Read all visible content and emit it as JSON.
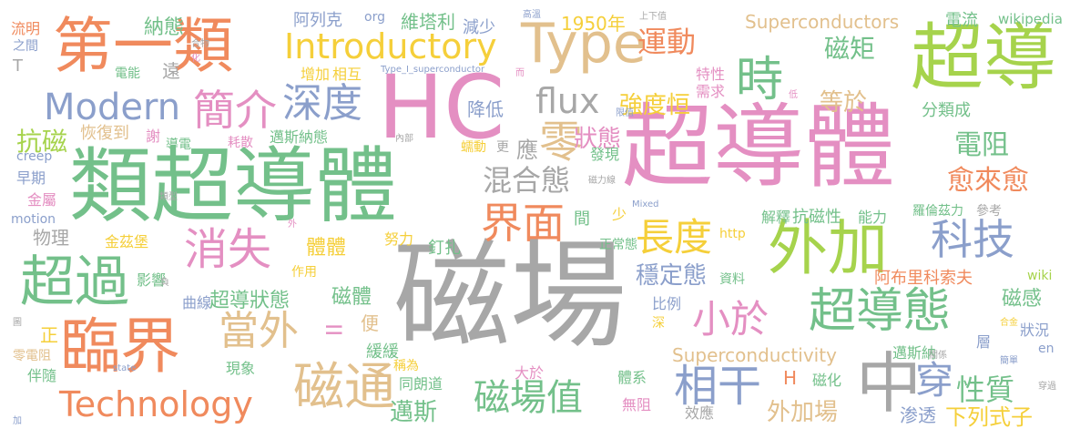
{
  "colors": {
    "gray": "#a7a7a7",
    "pink": "#e48fc2",
    "green": "#73c08a",
    "orange": "#f08a5d",
    "tan": "#e2c08d",
    "blue": "#8b9fcb",
    "lime": "#a6d34c",
    "yellow": "#f5cf3a"
  },
  "words": [
    {
      "text": "磁場",
      "color": "gray"
    },
    {
      "text": "超導體",
      "color": "pink"
    },
    {
      "text": "類超導體",
      "color": "green"
    },
    {
      "text": "HC",
      "color": "pink"
    },
    {
      "text": "第一類",
      "color": "orange"
    },
    {
      "text": "超導",
      "color": "lime"
    },
    {
      "text": "Type",
      "color": "tan"
    },
    {
      "text": "臨界",
      "color": "orange"
    },
    {
      "text": "外加",
      "color": "lime"
    },
    {
      "text": "中",
      "color": "gray"
    },
    {
      "text": "Introductory",
      "color": "yellow"
    },
    {
      "text": "磁通",
      "color": "tan"
    },
    {
      "text": "超過",
      "color": "green"
    },
    {
      "text": "消失",
      "color": "pink"
    },
    {
      "text": "深度",
      "color": "blue"
    },
    {
      "text": "Modern",
      "color": "blue"
    },
    {
      "text": "Technology",
      "color": "orange"
    },
    {
      "text": "超導態",
      "color": "green"
    },
    {
      "text": "相干",
      "color": "blue"
    },
    {
      "text": "磁場值",
      "color": "green"
    },
    {
      "text": "簡介",
      "color": "pink"
    },
    {
      "text": "時",
      "color": "green"
    },
    {
      "text": "當外",
      "color": "tan"
    },
    {
      "text": "科技",
      "color": "blue"
    },
    {
      "text": "界面",
      "color": "orange"
    },
    {
      "text": "小於",
      "color": "pink"
    },
    {
      "text": "長度",
      "color": "yellow"
    },
    {
      "text": "flux",
      "color": "gray"
    },
    {
      "text": "零",
      "color": "tan"
    },
    {
      "text": "混合態",
      "color": "gray"
    },
    {
      "text": "運動",
      "color": "orange"
    },
    {
      "text": "穿",
      "color": "blue"
    },
    {
      "text": "性質",
      "color": "green"
    },
    {
      "text": "電阻",
      "color": "green"
    },
    {
      "text": "愈來愈",
      "color": "orange"
    },
    {
      "text": "磁矩",
      "color": "green"
    },
    {
      "text": "強度恒",
      "color": "yellow"
    },
    {
      "text": "狀態",
      "color": "pink"
    },
    {
      "text": "等於",
      "color": "tan"
    },
    {
      "text": "外加場",
      "color": "tan"
    },
    {
      "text": "下列式子",
      "color": "yellow"
    },
    {
      "text": "穩定態",
      "color": "blue"
    },
    {
      "text": "Superconductors",
      "color": "tan"
    },
    {
      "text": "Superconductivity",
      "color": "tan"
    },
    {
      "text": "阿布里科索夫",
      "color": "orange"
    },
    {
      "text": "磁體",
      "color": "green"
    },
    {
      "text": "超導狀態",
      "color": "green"
    },
    {
      "text": "體體",
      "color": "yellow"
    },
    {
      "text": "邁斯",
      "color": "green"
    },
    {
      "text": "抗磁",
      "color": "lime"
    },
    {
      "text": "1950年",
      "color": "yellow"
    },
    {
      "text": "納態",
      "color": "green"
    },
    {
      "text": "維塔利",
      "color": "green"
    },
    {
      "text": "阿列克",
      "color": "blue"
    },
    {
      "text": "減少",
      "color": "blue"
    },
    {
      "text": "電流",
      "color": "green"
    },
    {
      "text": "wikipedia",
      "color": "green"
    },
    {
      "text": "應",
      "color": "gray"
    },
    {
      "text": "降低",
      "color": "blue"
    },
    {
      "text": "磁感",
      "color": "green"
    },
    {
      "text": "磁化",
      "color": "green"
    },
    {
      "text": "渗透",
      "color": "blue"
    },
    {
      "text": "解釋",
      "color": "green"
    },
    {
      "text": "能力",
      "color": "green"
    },
    {
      "text": "抗磁性",
      "color": "green"
    },
    {
      "text": "羅倫茲力",
      "color": "green"
    },
    {
      "text": "參考",
      "color": "gray"
    },
    {
      "text": "遠",
      "color": "gray"
    },
    {
      "text": "增加",
      "color": "yellow"
    },
    {
      "text": "相互",
      "color": "yellow"
    },
    {
      "text": "物理",
      "color": "gray"
    },
    {
      "text": "金茲堡",
      "color": "yellow"
    },
    {
      "text": "釘扎",
      "color": "green"
    },
    {
      "text": "努力",
      "color": "yellow"
    },
    {
      "text": "正常態",
      "color": "green"
    },
    {
      "text": "曲線",
      "color": "blue"
    },
    {
      "text": "影響",
      "color": "green"
    },
    {
      "text": "作用",
      "color": "yellow"
    },
    {
      "text": "緩緩",
      "color": "green"
    },
    {
      "text": "現象",
      "color": "green"
    },
    {
      "text": "同朗道",
      "color": "green"
    },
    {
      "text": "大於",
      "color": "pink"
    },
    {
      "text": "稱為",
      "color": "yellow"
    },
    {
      "text": "體系",
      "color": "green"
    },
    {
      "text": "無阻",
      "color": "pink"
    },
    {
      "text": "效應",
      "color": "gray"
    },
    {
      "text": "邁斯納",
      "color": "green"
    },
    {
      "text": "層",
      "color": "blue"
    },
    {
      "text": "狀況",
      "color": "blue"
    },
    {
      "text": "en",
      "color": "blue"
    },
    {
      "text": "伴隨",
      "color": "green"
    },
    {
      "text": "零電阻",
      "color": "tan"
    },
    {
      "text": "早期",
      "color": "blue"
    },
    {
      "text": "金屬",
      "color": "pink"
    },
    {
      "text": "motion",
      "color": "blue"
    },
    {
      "text": "creep",
      "color": "blue"
    },
    {
      "text": "恢復到",
      "color": "tan"
    },
    {
      "text": "謝",
      "color": "pink"
    },
    {
      "text": "導電",
      "color": "green"
    },
    {
      "text": "耗散",
      "color": "pink"
    },
    {
      "text": "邁斯納態",
      "color": "green"
    },
    {
      "text": "蠕動",
      "color": "yellow"
    },
    {
      "text": "更",
      "color": "gray"
    },
    {
      "text": "發現",
      "color": "green"
    },
    {
      "text": "間",
      "color": "green"
    },
    {
      "text": "少",
      "color": "yellow"
    },
    {
      "text": "比例",
      "color": "blue"
    },
    {
      "text": "深",
      "color": "yellow"
    },
    {
      "text": "資料",
      "color": "green"
    },
    {
      "text": "特性",
      "color": "pink"
    },
    {
      "text": "需求",
      "color": "pink"
    },
    {
      "text": "分類成",
      "color": "green"
    },
    {
      "text": "電能",
      "color": "green"
    },
    {
      "text": "流明",
      "color": "orange"
    },
    {
      "text": "之間",
      "color": "blue"
    },
    {
      "text": "T",
      "color": "gray"
    },
    {
      "text": "org",
      "color": "blue"
    },
    {
      "text": "Type_I_superconductor",
      "color": "blue"
    },
    {
      "text": "高溫",
      "color": "blue"
    },
    {
      "text": "上下值",
      "color": "gray"
    },
    {
      "text": "合物",
      "color": "gray"
    },
    {
      "text": "化",
      "color": "pink"
    },
    {
      "text": "內部",
      "color": "gray"
    },
    {
      "text": "磁力線",
      "color": "gray"
    },
    {
      "text": "類型",
      "color": "gray"
    },
    {
      "text": "Mixed",
      "color": "blue"
    },
    {
      "text": "http",
      "color": "yellow"
    },
    {
      "text": "wiki",
      "color": "lime"
    },
    {
      "text": "合金",
      "color": "yellow"
    },
    {
      "text": "關係",
      "color": "gray"
    },
    {
      "text": "簡單",
      "color": "blue"
    },
    {
      "text": "穿過",
      "color": "gray"
    },
    {
      "text": "state",
      "color": "blue"
    },
    {
      "text": "加",
      "color": "blue"
    },
    {
      "text": "負",
      "color": "gray"
    },
    {
      "text": "外",
      "color": "pink"
    },
    {
      "text": "低",
      "color": "pink"
    },
    {
      "text": "限值",
      "color": "blue"
    },
    {
      "text": "H",
      "color": "orange"
    },
    {
      "text": "便",
      "color": "tan"
    },
    {
      "text": "II",
      "color": "pink"
    },
    {
      "text": "正",
      "color": "yellow"
    },
    {
      "text": "而",
      "color": "pink"
    },
    {
      "text": "圖",
      "color": "gray"
    }
  ]
}
